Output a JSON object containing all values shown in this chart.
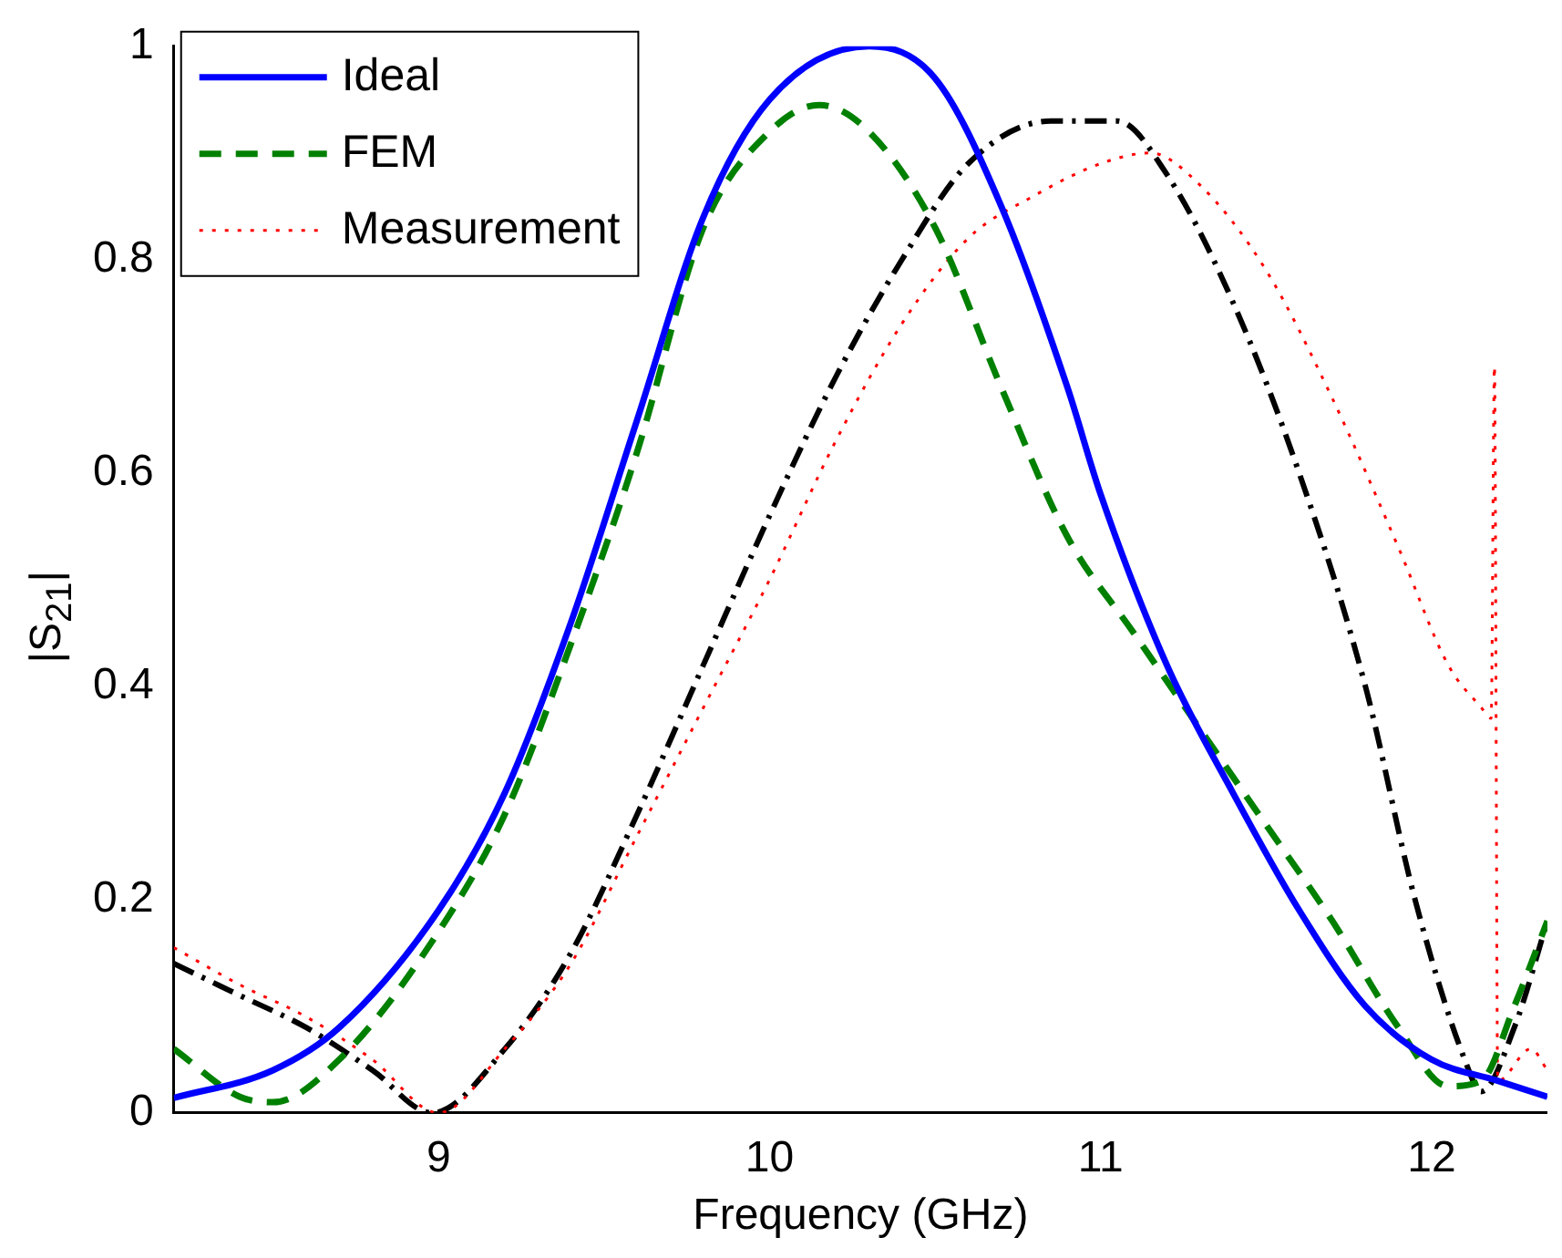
{
  "chart_data": {
    "type": "line",
    "xlabel": "Frequency (GHz)",
    "ylabel": "|S$_{21}$|",
    "xlim": [
      8.2,
      12.35
    ],
    "ylim": [
      0,
      1
    ],
    "xticks": [
      9,
      10,
      11,
      12
    ],
    "yticks": [
      0,
      0.2,
      0.4,
      0.6,
      0.8,
      1
    ],
    "grid": false,
    "legend": "top left",
    "marker": "none",
    "series": [
      {
        "name": "Ideal",
        "color": "#0000ff",
        "line_style": "solid",
        "x": [
          8.2,
          8.5,
          8.7,
          9.0,
          9.2,
          9.4,
          9.6,
          9.8,
          10.0,
          10.3,
          10.5,
          10.7,
          10.9,
          11.0,
          11.2,
          11.4,
          11.6,
          11.8,
          12.0,
          12.2,
          12.35
        ],
        "values": [
          0.014,
          0.04,
          0.08,
          0.19,
          0.3,
          0.46,
          0.65,
          0.84,
          0.95,
          1.0,
          0.97,
          0.85,
          0.68,
          0.58,
          0.42,
          0.3,
          0.19,
          0.1,
          0.05,
          0.03,
          0.015
        ]
      },
      {
        "name": "FEM",
        "color": "#008000",
        "line_style": "dashed",
        "x": [
          8.2,
          8.4,
          8.5,
          8.7,
          9.0,
          9.2,
          9.4,
          9.6,
          9.8,
          10.0,
          10.15,
          10.3,
          10.5,
          10.7,
          10.9,
          11.1,
          11.3,
          11.5,
          11.7,
          11.9,
          12.05,
          12.15,
          12.25,
          12.35
        ],
        "values": [
          0.06,
          0.015,
          0.01,
          0.05,
          0.17,
          0.28,
          0.44,
          0.62,
          0.83,
          0.92,
          0.945,
          0.92,
          0.83,
          0.68,
          0.54,
          0.45,
          0.36,
          0.27,
          0.18,
          0.08,
          0.025,
          0.03,
          0.1,
          0.18
        ]
      },
      {
        "name": "Measurement",
        "color": "#ff0000",
        "line_style": "dotted",
        "x": [
          8.2,
          8.4,
          8.6,
          8.8,
          9.0,
          9.2,
          9.4,
          9.6,
          9.8,
          10.0,
          10.2,
          10.4,
          10.6,
          10.8,
          11.0,
          11.15,
          11.3,
          11.5,
          11.7,
          11.9,
          12.05,
          12.15,
          12.18,
          12.19,
          12.2,
          12.3,
          12.35
        ],
        "values": [
          0.155,
          0.12,
          0.09,
          0.05,
          0.0,
          0.06,
          0.14,
          0.26,
          0.38,
          0.5,
          0.63,
          0.74,
          0.82,
          0.86,
          0.89,
          0.9,
          0.87,
          0.79,
          0.67,
          0.53,
          0.42,
          0.38,
          0.37,
          0.7,
          0.03,
          0.06,
          0.04
        ]
      },
      {
        "color": "#000000",
        "line_style": "dashdot",
        "x": [
          8.2,
          8.4,
          8.6,
          8.8,
          8.98,
          9.2,
          9.4,
          9.6,
          9.8,
          10.0,
          10.2,
          10.4,
          10.6,
          10.85,
          11.05,
          11.2,
          11.4,
          11.6,
          11.8,
          11.95,
          12.1,
          12.15,
          12.25,
          12.35
        ],
        "values": [
          0.14,
          0.11,
          0.08,
          0.04,
          0.0,
          0.06,
          0.15,
          0.28,
          0.42,
          0.56,
          0.69,
          0.8,
          0.89,
          0.93,
          0.93,
          0.88,
          0.76,
          0.6,
          0.4,
          0.2,
          0.05,
          0.02,
          0.08,
          0.18
        ]
      }
    ]
  }
}
